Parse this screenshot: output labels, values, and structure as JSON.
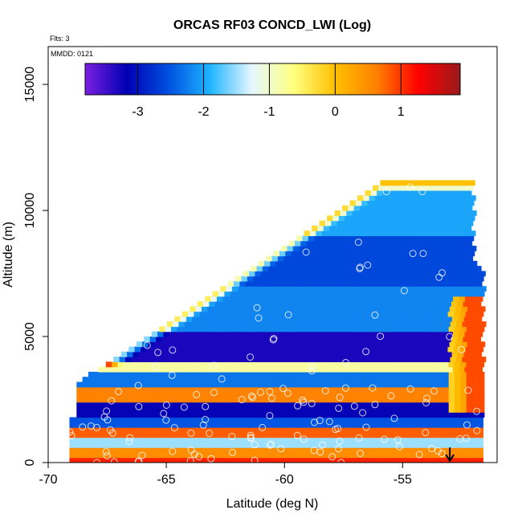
{
  "chart_data": {
    "type": "heatmap",
    "title": "ORCAS RF03 CONCD_LWI (Log)",
    "annotations": {
      "flights": "Flts: 3",
      "date": "MMDD: 0121"
    },
    "xlabel": "Latitude (deg N)",
    "ylabel": "Altitude (m)",
    "xlim": [
      -70,
      -51
    ],
    "ylim": [
      0,
      16500
    ],
    "x_ticks": [
      -70,
      -65,
      -60,
      -55
    ],
    "x_tick_labels": [
      "-70",
      "-65",
      "-60",
      "-55"
    ],
    "y_ticks": [
      0,
      5000,
      10000,
      15000
    ],
    "y_tick_labels": [
      "0",
      "5000",
      "10000",
      "15000"
    ],
    "colorbar": {
      "range": [
        -3.8,
        1.9
      ],
      "ticks": [
        -3,
        -2,
        -1,
        0,
        1
      ],
      "tick_labels": [
        "-3",
        "-2",
        "-1",
        "0",
        "1"
      ],
      "colors": [
        "#7b1fe0",
        "#0000b4",
        "#0050e0",
        "#1fb5ff",
        "#e6f7ff",
        "#ffff80",
        "#ffc000",
        "#ff8000",
        "#ff0000",
        "#9a1a1a"
      ],
      "legend_position": "top"
    },
    "grid": false,
    "data_extent": {
      "x_min": -69.1,
      "x_max": -51.7,
      "y_max": 11100
    },
    "layers": [
      {
        "y0": 0,
        "y1": 300,
        "value": 1.1
      },
      {
        "y0": 300,
        "y1": 700,
        "value": 0.5
      },
      {
        "y0": 700,
        "y1": 1000,
        "value": -1.5
      },
      {
        "y0": 1000,
        "y1": 1400,
        "value": 0.8
      },
      {
        "y0": 1400,
        "y1": 1800,
        "value": -2.5
      },
      {
        "y0": 1800,
        "y1": 2400,
        "value": -3.2
      },
      {
        "y0": 2400,
        "y1": 3000,
        "value": 0.6
      },
      {
        "y0": 3000,
        "y1": 3600,
        "value": -2.3
      },
      {
        "y0": 3600,
        "y1": 4100,
        "value": -0.8
      },
      {
        "y0": 4100,
        "y1": 5200,
        "value": -3.3
      },
      {
        "y0": 5200,
        "y1": 7000,
        "value": -2.2
      },
      {
        "y0": 7000,
        "y1": 9000,
        "value": -2.6
      },
      {
        "y0": 9000,
        "y1": 11100,
        "value": -2.0
      }
    ],
    "right_column": {
      "x0": -53.1,
      "x1": -51.7,
      "y0": 2000,
      "y1": 6600,
      "value": 0.9
    },
    "marker": {
      "x": -53,
      "y": 600,
      "shape": "down-arrow"
    }
  }
}
